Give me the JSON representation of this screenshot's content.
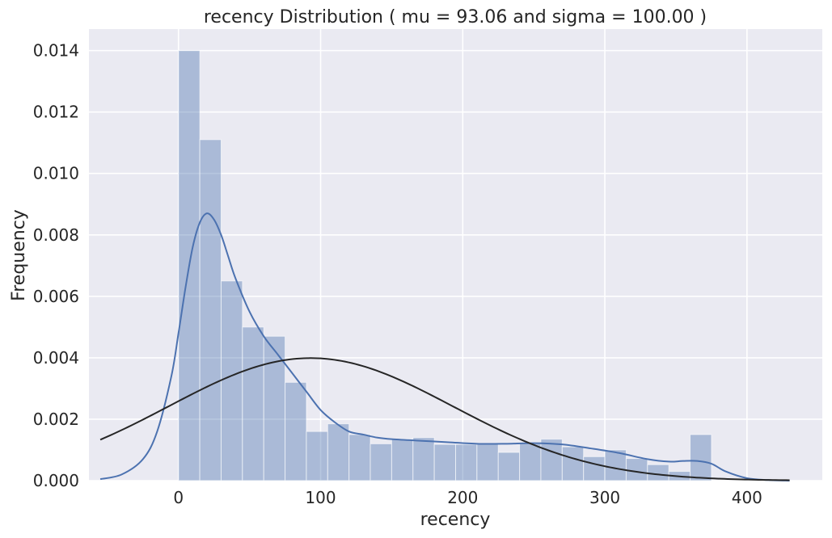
{
  "chart_data": {
    "type": "bar",
    "title": "recency Distribution ( mu = 93.06 and sigma = 100.00 )",
    "xlabel": "recency",
    "ylabel": "Frequency",
    "xlim": [
      -63,
      453
    ],
    "ylim": [
      0,
      0.0147
    ],
    "xticks": [
      0,
      100,
      200,
      300,
      400
    ],
    "yticks": [
      0.0,
      0.002,
      0.004,
      0.006,
      0.008,
      0.01,
      0.012,
      0.014
    ],
    "xtick_labels": [
      "0",
      "100",
      "200",
      "300",
      "400"
    ],
    "ytick_labels": [
      "0.000",
      "0.002",
      "0.004",
      "0.006",
      "0.008",
      "0.010",
      "0.012",
      "0.014"
    ],
    "grid": true,
    "background": "#EAEAF2",
    "bar_color": "#4C72B0",
    "kde_color": "#4C72B0",
    "normal_color": "#262626",
    "bins": [
      {
        "x0": 0,
        "x1": 15,
        "value": 0.014
      },
      {
        "x0": 15,
        "x1": 30,
        "value": 0.0111
      },
      {
        "x0": 30,
        "x1": 45,
        "value": 0.0065
      },
      {
        "x0": 45,
        "x1": 60,
        "value": 0.005
      },
      {
        "x0": 60,
        "x1": 75,
        "value": 0.0047
      },
      {
        "x0": 75,
        "x1": 90,
        "value": 0.0032
      },
      {
        "x0": 90,
        "x1": 105,
        "value": 0.0016
      },
      {
        "x0": 105,
        "x1": 120,
        "value": 0.00185
      },
      {
        "x0": 120,
        "x1": 135,
        "value": 0.0015
      },
      {
        "x0": 135,
        "x1": 150,
        "value": 0.0012
      },
      {
        "x0": 150,
        "x1": 165,
        "value": 0.00135
      },
      {
        "x0": 165,
        "x1": 180,
        "value": 0.0014
      },
      {
        "x0": 180,
        "x1": 195,
        "value": 0.00118
      },
      {
        "x0": 195,
        "x1": 210,
        "value": 0.00118
      },
      {
        "x0": 210,
        "x1": 225,
        "value": 0.0012
      },
      {
        "x0": 225,
        "x1": 240,
        "value": 0.00092
      },
      {
        "x0": 240,
        "x1": 255,
        "value": 0.0012
      },
      {
        "x0": 255,
        "x1": 270,
        "value": 0.00135
      },
      {
        "x0": 270,
        "x1": 285,
        "value": 0.0011
      },
      {
        "x0": 285,
        "x1": 300,
        "value": 0.00078
      },
      {
        "x0": 300,
        "x1": 315,
        "value": 0.001
      },
      {
        "x0": 315,
        "x1": 330,
        "value": 0.00072
      },
      {
        "x0": 330,
        "x1": 345,
        "value": 0.00052
      },
      {
        "x0": 345,
        "x1": 360,
        "value": 0.0003
      },
      {
        "x0": 360,
        "x1": 375,
        "value": 0.0015
      }
    ],
    "kde": {
      "x": [
        -55,
        -40,
        -25,
        -15,
        -5,
        0,
        5,
        10,
        15,
        20,
        25,
        30,
        35,
        40,
        50,
        60,
        70,
        80,
        90,
        100,
        110,
        120,
        130,
        140,
        150,
        170,
        190,
        210,
        230,
        250,
        270,
        290,
        310,
        330,
        345,
        355,
        365,
        375,
        385,
        400,
        415,
        430
      ],
      "y": [
        5e-05,
        0.0002,
        0.0007,
        0.0016,
        0.0034,
        0.0048,
        0.0063,
        0.0076,
        0.0084,
        0.0087,
        0.0085,
        0.008,
        0.0073,
        0.0066,
        0.0055,
        0.0047,
        0.0041,
        0.0035,
        0.0029,
        0.0023,
        0.0019,
        0.0016,
        0.0015,
        0.0014,
        0.00135,
        0.0013,
        0.00125,
        0.0012,
        0.0012,
        0.00122,
        0.00118,
        0.00105,
        0.0009,
        0.0007,
        0.00062,
        0.00064,
        0.00064,
        0.00055,
        0.0003,
        8e-05,
        2e-05,
        0.0
      ]
    },
    "normal_fit": {
      "mu": 93.06,
      "sigma": 100.0,
      "x_range": [
        -55,
        430
      ]
    }
  }
}
